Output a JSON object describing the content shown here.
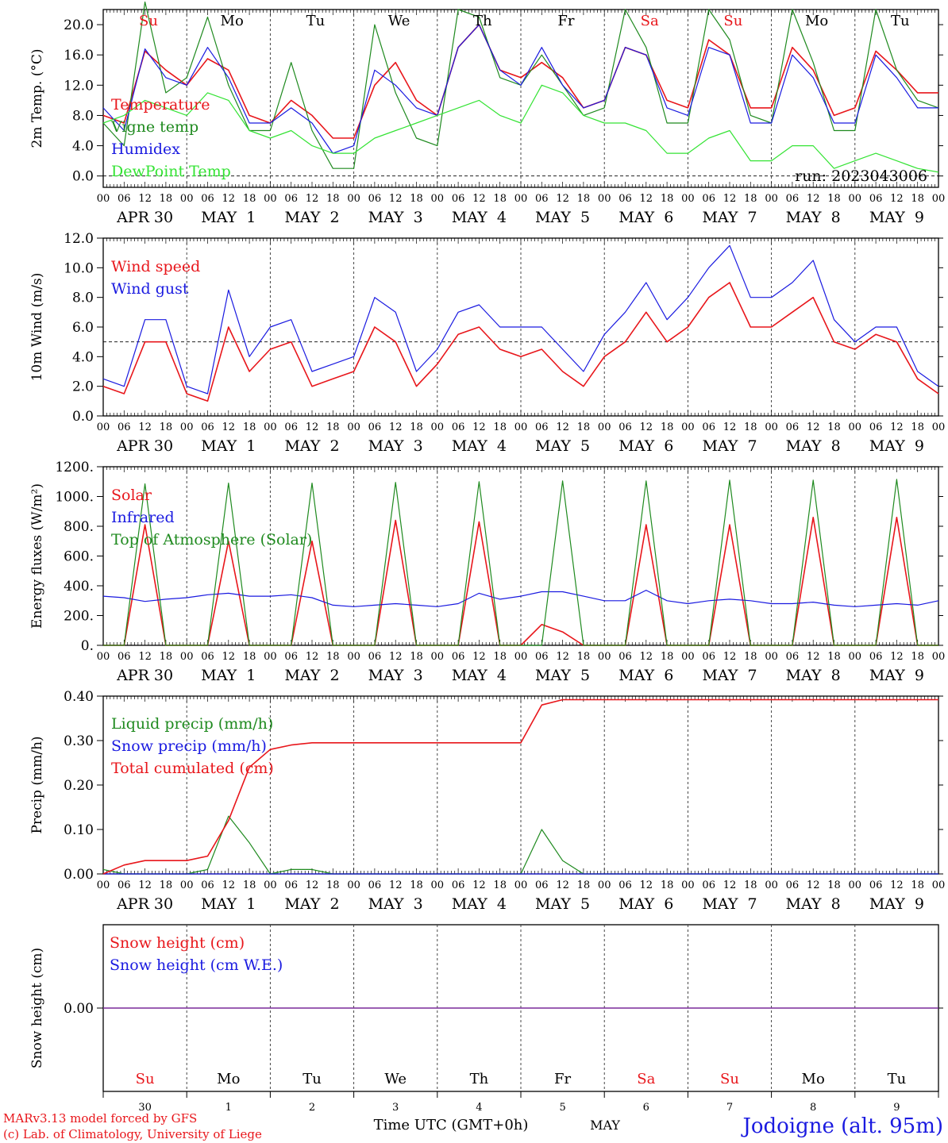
{
  "run_label": "run: 2023043006",
  "footer": {
    "model_line": "MARv3.13 model forced by GFS",
    "lab_line": "(c) Lab. of Climatology, University of Liege",
    "xaxis_title": "Time UTC (GMT+0h)",
    "month_label": "MAY",
    "station": "Jodoigne (alt. 95m)"
  },
  "day_labels": [
    "Su",
    "Mo",
    "Tu",
    "We",
    "Th",
    "Fr",
    "Sa",
    "Su",
    "Mo",
    "Tu"
  ],
  "day_label_colors": [
    "#e8161b",
    "#000000",
    "#000000",
    "#000000",
    "#000000",
    "#000000",
    "#e8161b",
    "#e8161b",
    "#000000",
    "#000000"
  ],
  "date_labels": [
    "APR 30",
    "MAY  1",
    "MAY  2",
    "MAY  3",
    "MAY  4",
    "MAY  5",
    "MAY  6",
    "MAY  7",
    "MAY  8",
    "MAY  9"
  ],
  "date_numbers": [
    "30",
    "1",
    "2",
    "3",
    "4",
    "5",
    "6",
    "7",
    "8",
    "9"
  ],
  "hour_ticks": [
    "00",
    "06",
    "12",
    "18"
  ],
  "colors": {
    "red": "#e8161b",
    "green": "#1f8a1f",
    "blue": "#1a1ae0",
    "lightgreen": "#34e334",
    "purple": "#7a2a9a"
  },
  "chart_data": [
    {
      "type": "line",
      "ylabel": "2m Temp. (°C)",
      "ylim": [
        -1.5,
        22
      ],
      "yticks": [
        0,
        4,
        8,
        12,
        16,
        20
      ],
      "ytick_labels": [
        "0.0",
        "4.0",
        "8.0",
        "12.0",
        "16.0",
        "20.0"
      ],
      "ref_line": 0,
      "x_unit": "hours since 2023-04-30 00 UTC",
      "x": [
        0,
        6,
        12,
        18,
        24,
        30,
        36,
        42,
        48,
        54,
        60,
        66,
        72,
        78,
        84,
        90,
        96,
        102,
        108,
        114,
        120,
        126,
        132,
        138,
        144,
        150,
        156,
        162,
        168,
        174,
        180,
        186,
        192,
        198,
        204,
        210,
        216,
        222,
        228,
        234,
        240
      ],
      "series": [
        {
          "name": "Temperature",
          "color": "red",
          "values": [
            8,
            7,
            16.5,
            14,
            12,
            15.5,
            14,
            8,
            7,
            10,
            8,
            5,
            5,
            12,
            15,
            10,
            8,
            17,
            20,
            14,
            13,
            15,
            13,
            9,
            10,
            17,
            16,
            10,
            9,
            18,
            16,
            9,
            9,
            17,
            14,
            8,
            9,
            16.5,
            14,
            11,
            11
          ]
        },
        {
          "name": "Vigne temp",
          "color": "green",
          "values": [
            7,
            4,
            23,
            11,
            13,
            21,
            12,
            6,
            6,
            15,
            6,
            1,
            1,
            20,
            11,
            5,
            4,
            22,
            21,
            13,
            12,
            16,
            12,
            8,
            9,
            22,
            17,
            7,
            7,
            22,
            18,
            8,
            7,
            22,
            15,
            6,
            6,
            22,
            14,
            10,
            9
          ]
        },
        {
          "name": "Humidex",
          "color": "blue",
          "values": [
            9,
            6,
            16.8,
            13,
            12,
            17,
            13,
            7,
            7,
            9,
            7,
            3,
            4,
            14,
            12,
            9,
            8,
            17,
            20,
            14,
            12,
            17,
            12,
            9,
            10,
            17,
            16,
            9,
            8,
            17,
            16,
            7,
            7,
            16,
            13,
            7,
            7,
            16,
            13,
            9,
            9
          ]
        },
        {
          "name": "DewPoint Temp",
          "color": "lightgreen",
          "values": [
            7,
            8,
            10,
            9,
            8,
            11,
            10,
            6,
            5,
            6,
            4,
            3,
            3,
            5,
            6,
            7,
            8,
            9,
            10,
            8,
            7,
            12,
            11,
            8,
            7,
            7,
            6,
            3,
            3,
            5,
            6,
            2,
            2,
            4,
            4,
            1,
            2,
            3,
            2,
            1,
            0.5
          ]
        }
      ]
    },
    {
      "type": "line",
      "ylabel": "10m Wind (m/s)",
      "ylim": [
        0,
        12
      ],
      "yticks": [
        0,
        2,
        4,
        6,
        8,
        10,
        12
      ],
      "ytick_labels": [
        "0.0",
        "2.0",
        "4.0",
        "6.0",
        "8.0",
        "10.0",
        "12.0"
      ],
      "ref_line": 5,
      "x_unit": "hours since 2023-04-30 00 UTC",
      "x": [
        0,
        6,
        12,
        18,
        24,
        30,
        36,
        42,
        48,
        54,
        60,
        66,
        72,
        78,
        84,
        90,
        96,
        102,
        108,
        114,
        120,
        126,
        132,
        138,
        144,
        150,
        156,
        162,
        168,
        174,
        180,
        186,
        192,
        198,
        204,
        210,
        216,
        222,
        228,
        234,
        240
      ],
      "series": [
        {
          "name": "Wind speed",
          "color": "red",
          "values": [
            2,
            1.5,
            5,
            5,
            1.5,
            1,
            6,
            3,
            4.5,
            5,
            2,
            2.5,
            3,
            6,
            5,
            2,
            3.5,
            5.5,
            6,
            4.5,
            4,
            4.5,
            3,
            2,
            4,
            5,
            7,
            5,
            6,
            8,
            9,
            6,
            6,
            7,
            8,
            5,
            4.5,
            5.5,
            5,
            2.5,
            1.5
          ]
        },
        {
          "name": "Wind gust",
          "color": "blue",
          "values": [
            2.5,
            2,
            6.5,
            6.5,
            2,
            1.5,
            8.5,
            4,
            6,
            6.5,
            3,
            3.5,
            4,
            8,
            7,
            3,
            4.5,
            7,
            7.5,
            6,
            6,
            6,
            4.5,
            3,
            5.5,
            7,
            9,
            6.5,
            8,
            10,
            11.5,
            8,
            8,
            9,
            10.5,
            6.5,
            5,
            6,
            6,
            3,
            2
          ]
        }
      ]
    },
    {
      "type": "line",
      "ylabel": "Energy fluxes (W/m²)",
      "ylim": [
        0,
        1200
      ],
      "yticks": [
        0,
        200,
        400,
        600,
        800,
        1000,
        1200
      ],
      "ytick_labels": [
        "0.",
        "200.",
        "400.",
        "600.",
        "800.",
        "1000.",
        "1200."
      ],
      "x_unit": "hours since 2023-04-30 00 UTC",
      "x": [
        0,
        6,
        12,
        18,
        24,
        30,
        36,
        42,
        48,
        54,
        60,
        66,
        72,
        78,
        84,
        90,
        96,
        102,
        108,
        114,
        120,
        126,
        132,
        138,
        144,
        150,
        156,
        162,
        168,
        174,
        180,
        186,
        192,
        198,
        204,
        210,
        216,
        222,
        228,
        234,
        240
      ],
      "series": [
        {
          "name": "Solar",
          "color": "red",
          "values": [
            0,
            0,
            810,
            0,
            0,
            0,
            700,
            0,
            0,
            0,
            700,
            0,
            0,
            0,
            840,
            0,
            0,
            0,
            830,
            0,
            0,
            140,
            90,
            0,
            0,
            0,
            810,
            0,
            0,
            0,
            810,
            0,
            0,
            0,
            860,
            0,
            0,
            0,
            860,
            0,
            0
          ]
        },
        {
          "name": "Infrared",
          "color": "blue",
          "values": [
            330,
            320,
            295,
            310,
            320,
            340,
            350,
            330,
            330,
            340,
            320,
            270,
            260,
            270,
            280,
            270,
            260,
            280,
            350,
            310,
            330,
            360,
            360,
            330,
            300,
            300,
            370,
            300,
            280,
            300,
            310,
            300,
            280,
            280,
            290,
            270,
            260,
            270,
            280,
            270,
            300
          ]
        },
        {
          "name": "Top of Atmosphere (Solar)",
          "color": "green",
          "values": [
            0,
            0,
            1085,
            0,
            0,
            0,
            1090,
            0,
            0,
            0,
            1090,
            0,
            0,
            0,
            1095,
            0,
            0,
            0,
            1100,
            0,
            0,
            0,
            1105,
            0,
            0,
            0,
            1105,
            0,
            0,
            0,
            1110,
            0,
            0,
            0,
            1110,
            0,
            0,
            0,
            1115,
            0,
            0
          ]
        }
      ]
    },
    {
      "type": "line",
      "ylabel": "Precip (mm/h)",
      "ylim": [
        0,
        0.4
      ],
      "yticks": [
        0,
        0.1,
        0.2,
        0.3,
        0.4
      ],
      "ytick_labels": [
        "0.00",
        "0.10",
        "0.20",
        "0.30",
        "0.40"
      ],
      "x_unit": "hours since 2023-04-30 00 UTC",
      "x": [
        0,
        6,
        12,
        18,
        24,
        30,
        36,
        42,
        48,
        54,
        60,
        66,
        72,
        78,
        84,
        90,
        96,
        102,
        108,
        114,
        120,
        126,
        132,
        138,
        144,
        150,
        156,
        162,
        168,
        174,
        180,
        186,
        192,
        198,
        204,
        210,
        216,
        222,
        228,
        234,
        240
      ],
      "series": [
        {
          "name": "Liquid precip (mm/h)",
          "color": "green",
          "values": [
            0.01,
            0,
            0,
            0,
            0,
            0.01,
            0.13,
            0.07,
            0,
            0.01,
            0.01,
            0,
            0,
            0,
            0,
            0,
            0,
            0,
            0,
            0,
            0,
            0.1,
            0.03,
            0,
            0,
            0,
            0,
            0,
            0,
            0,
            0,
            0,
            0,
            0,
            0,
            0,
            0,
            0,
            0,
            0,
            0
          ]
        },
        {
          "name": "Snow precip (mm/h)",
          "color": "blue",
          "values": [
            0,
            0,
            0,
            0,
            0,
            0,
            0,
            0,
            0,
            0,
            0,
            0,
            0,
            0,
            0,
            0,
            0,
            0,
            0,
            0,
            0,
            0,
            0,
            0,
            0,
            0,
            0,
            0,
            0,
            0,
            0,
            0,
            0,
            0,
            0,
            0,
            0,
            0,
            0,
            0,
            0
          ]
        },
        {
          "name": "Total cumulated (cm)",
          "color": "red",
          "values": [
            0,
            0.02,
            0.03,
            0.03,
            0.03,
            0.04,
            0.12,
            0.24,
            0.28,
            0.29,
            0.295,
            0.295,
            0.295,
            0.295,
            0.295,
            0.295,
            0.295,
            0.295,
            0.295,
            0.295,
            0.295,
            0.38,
            0.392,
            0.392,
            0.392,
            0.392,
            0.392,
            0.392,
            0.392,
            0.392,
            0.392,
            0.392,
            0.392,
            0.392,
            0.392,
            0.392,
            0.392,
            0.392,
            0.392,
            0.392,
            0.392
          ]
        }
      ]
    },
    {
      "type": "line",
      "ylabel": "Snow height (cm)",
      "ylim": [
        -1,
        1
      ],
      "yticks": [
        0
      ],
      "ytick_labels": [
        "0.00"
      ],
      "x_unit": "hours since 2023-04-30 00 UTC",
      "x": [
        0,
        240
      ],
      "series": [
        {
          "name": "Snow height (cm)",
          "color": "red",
          "values": [
            0,
            0
          ]
        },
        {
          "name": "Snow height (cm W.E.)",
          "color": "blue",
          "values": [
            0,
            0
          ]
        }
      ]
    }
  ]
}
